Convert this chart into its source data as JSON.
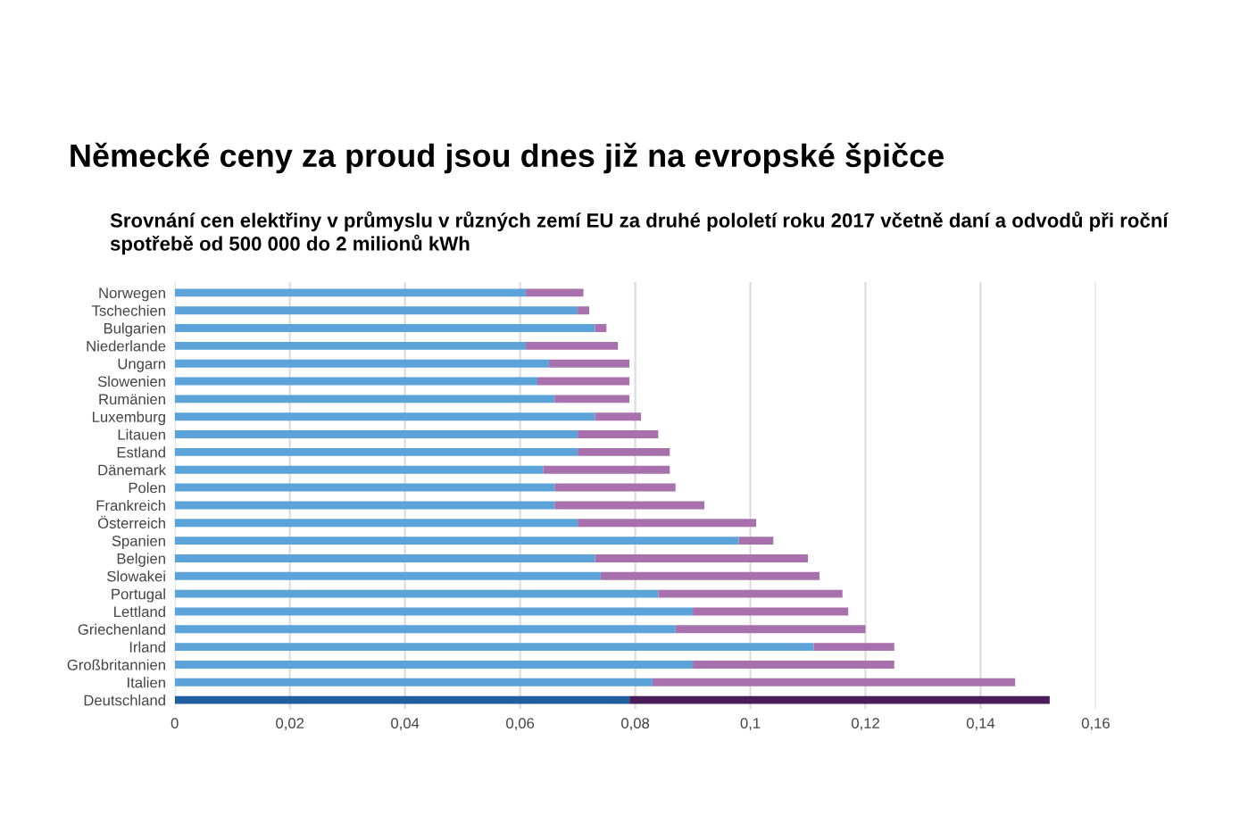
{
  "chart_data": {
    "type": "bar",
    "orientation": "horizontal",
    "stacked": true,
    "title": "Německé ceny za proud jsou dnes již na evropské špičce",
    "subtitle": "Srovnání cen elektřiny v průmyslu v různých zemí EU za druhé pololetí roku 2017 včetně daní a odvodů při roční spotřebě od 500 000 do 2 milionů kWh",
    "categories": [
      "Norwegen",
      "Tschechien",
      "Bulgarien",
      "Niederlande",
      "Ungarn",
      "Slowenien",
      "Rumänien",
      "Luxemburg",
      "Litauen",
      "Estland",
      "Dänemark",
      "Polen",
      "Frankreich",
      "Österreich",
      "Spanien",
      "Belgien",
      "Slowakei",
      "Portugal",
      "Lettland",
      "Griechenland",
      "Irland",
      "Großbritannien",
      "Italien",
      "Deutschland"
    ],
    "series": [
      {
        "colors": [
          "#5ba3d9",
          "#5ba3d9",
          "#5ba3d9",
          "#5ba3d9",
          "#5ba3d9",
          "#5ba3d9",
          "#5ba3d9",
          "#5ba3d9",
          "#5ba3d9",
          "#5ba3d9",
          "#5ba3d9",
          "#5ba3d9",
          "#5ba3d9",
          "#5ba3d9",
          "#5ba3d9",
          "#5ba3d9",
          "#5ba3d9",
          "#5ba3d9",
          "#5ba3d9",
          "#5ba3d9",
          "#5ba3d9",
          "#5ba3d9",
          "#5ba3d9",
          "#1f5f9e"
        ],
        "values": [
          0.061,
          0.07,
          0.073,
          0.061,
          0.065,
          0.063,
          0.066,
          0.073,
          0.07,
          0.07,
          0.064,
          0.066,
          0.066,
          0.07,
          0.098,
          0.073,
          0.074,
          0.084,
          0.09,
          0.087,
          0.111,
          0.09,
          0.083,
          0.079
        ]
      },
      {
        "colors": [
          "#a870ac",
          "#a870ac",
          "#a870ac",
          "#a870ac",
          "#a870ac",
          "#a870ac",
          "#a870ac",
          "#a870ac",
          "#a870ac",
          "#a870ac",
          "#a870ac",
          "#a870ac",
          "#a870ac",
          "#a870ac",
          "#a870ac",
          "#a870ac",
          "#a870ac",
          "#a870ac",
          "#a870ac",
          "#a870ac",
          "#a870ac",
          "#a870ac",
          "#a870ac",
          "#4a1c5c"
        ],
        "values": [
          0.01,
          0.002,
          0.002,
          0.016,
          0.014,
          0.016,
          0.013,
          0.008,
          0.014,
          0.016,
          0.022,
          0.021,
          0.026,
          0.031,
          0.006,
          0.037,
          0.038,
          0.032,
          0.027,
          0.033,
          0.014,
          0.035,
          0.063,
          0.073
        ]
      }
    ],
    "xlim": [
      0,
      0.16
    ],
    "xticks": [
      0,
      {
        "value": 0.02,
        "label": "0,02"
      },
      {
        "value": 0.04,
        "label": "0,04"
      },
      {
        "value": 0.06,
        "label": "0,06"
      },
      {
        "value": 0.08,
        "label": "0,08"
      },
      {
        "value": 0.1,
        "label": "0,1"
      },
      {
        "value": 0.12,
        "label": "0,12"
      },
      {
        "value": 0.14,
        "label": "0,14"
      },
      {
        "value": 0.16,
        "label": "0,16"
      }
    ],
    "grid": "x"
  }
}
